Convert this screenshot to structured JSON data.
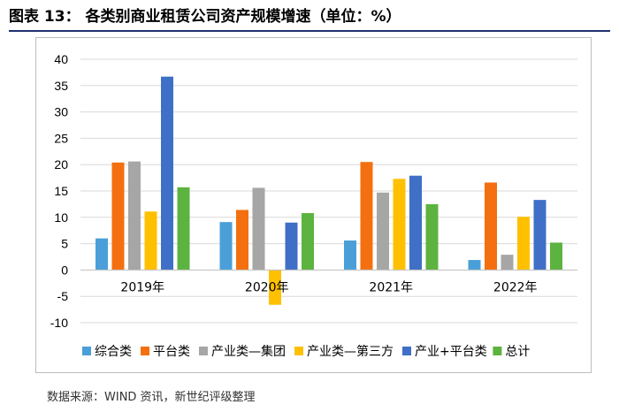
{
  "figure_title": "图表 13：  各类别商业租赁公司资产规模增速（单位：%）",
  "source_note": "数据来源：WIND 资讯，新世纪评级整理",
  "colors": {
    "title_rule": "#1f2f6f",
    "gridline": "#d9d9d9",
    "axis": "#bfbfbf"
  },
  "chart_data": {
    "type": "bar",
    "title": "",
    "xlabel": "",
    "ylabel": "",
    "categories": [
      "2019年",
      "2020年",
      "2021年",
      "2022年"
    ],
    "ylim": [
      -10,
      40
    ],
    "yticks": [
      40,
      35,
      30,
      25,
      20,
      15,
      10,
      5,
      0,
      -5,
      -10
    ],
    "grid": true,
    "legend_position": "bottom",
    "series": [
      {
        "name": "综合类",
        "color": "#4a9fd8",
        "values": [
          6.0,
          9.1,
          5.6,
          1.9
        ]
      },
      {
        "name": "平台类",
        "color": "#f46f0f",
        "values": [
          20.4,
          11.4,
          20.5,
          16.6
        ]
      },
      {
        "name": "产业类—集团",
        "color": "#a6a6a6",
        "values": [
          20.6,
          15.6,
          14.7,
          2.9
        ]
      },
      {
        "name": "产业类—第三方",
        "color": "#ffc000",
        "values": [
          11.1,
          -6.6,
          17.3,
          10.1
        ]
      },
      {
        "name": "产业+平台类",
        "color": "#3f6fc6",
        "values": [
          36.7,
          9.0,
          17.9,
          13.3
        ]
      },
      {
        "name": "总计",
        "color": "#5cb33f",
        "values": [
          15.7,
          10.8,
          12.5,
          5.2
        ]
      }
    ]
  }
}
